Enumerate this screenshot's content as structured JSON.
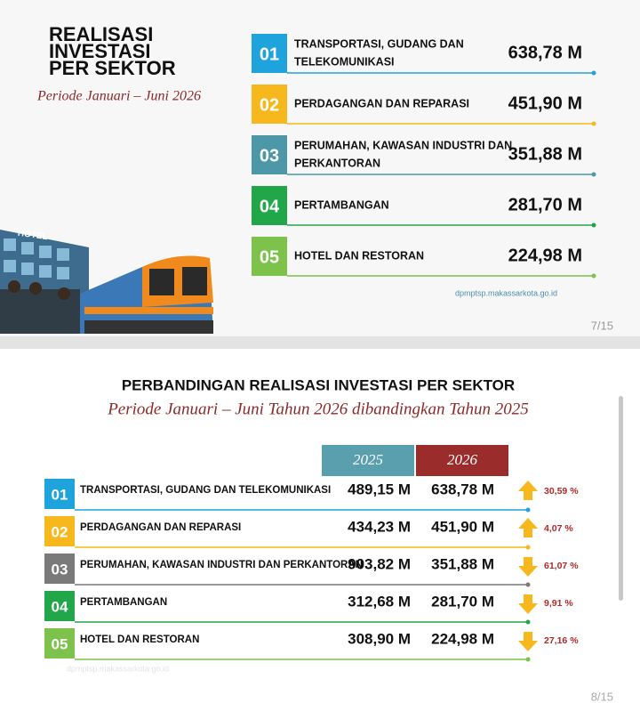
{
  "slide1": {
    "title": [
      "REALISASI",
      "INVESTASI",
      "PER SEKTOR"
    ],
    "subtitle": "Periode Januari – Juni 2026",
    "items": [
      {
        "num": "01",
        "label": [
          "TRANSPORTASI, GUDANG DAN",
          "TELEKOMUNIKASI"
        ],
        "value": "638,78 M"
      },
      {
        "num": "02",
        "label": [
          "PERDAGANGAN DAN REPARASI"
        ],
        "value": "451,90 M"
      },
      {
        "num": "03",
        "label": [
          "PERUMAHAN, KAWASAN INDUSTRI DAN",
          "PERKANTORAN"
        ],
        "value": "351,88 M"
      },
      {
        "num": "04",
        "label": [
          "PERTAMBANGAN"
        ],
        "value": "281,70 M"
      },
      {
        "num": "05",
        "label": [
          "HOTEL DAN RESTORAN"
        ],
        "value": "224,98 M"
      }
    ],
    "hotel_sign": "HOTEL",
    "source": "dpmptsp.makassarkota.go.id",
    "page": "7/15"
  },
  "slide2": {
    "title": "PERBANDINGAN REALISASI INVESTASI PER SEKTOR",
    "subtitle": "Periode Januari – Juni Tahun 2026 dibandingkan Tahun 2025",
    "headers": [
      "2025",
      "2026"
    ],
    "rows": [
      {
        "num": "01",
        "label": "TRANSPORTASI, GUDANG DAN TELEKOMUNIKASI",
        "v2025": "489,15 M",
        "v2026": "638,78 M",
        "change": "30,59 %",
        "direction": "up"
      },
      {
        "num": "02",
        "label": "PERDAGANGAN DAN REPARASI",
        "v2025": "434,23 M",
        "v2026": "451,90 M",
        "change": "4,07 %",
        "direction": "up"
      },
      {
        "num": "03",
        "label": "PERUMAHAN, KAWASAN INDUSTRI DAN PERKANTORAN",
        "v2025": "903,82 M",
        "v2026": "351,88 M",
        "change": "61,07 %",
        "direction": "down"
      },
      {
        "num": "04",
        "label": "PERTAMBANGAN",
        "v2025": "312,68 M",
        "v2026": "281,70 M",
        "change": "9,91 %",
        "direction": "down"
      },
      {
        "num": "05",
        "label": "HOTEL DAN RESTORAN",
        "v2025": "308,90 M",
        "v2026": "224,98 M",
        "change": "27,16 %",
        "direction": "down"
      }
    ],
    "source": "dpmptsp.makassarkota.go.id",
    "page": "8/15"
  }
}
